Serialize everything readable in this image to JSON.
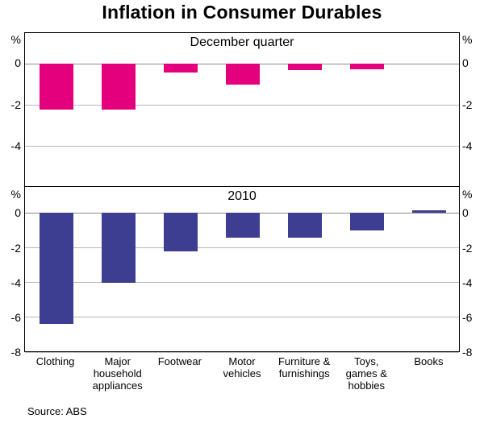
{
  "title": "Inflation in Consumer Durables",
  "source": "Source: ABS",
  "chart_data": {
    "type": "bar",
    "grid": true,
    "legend": "none",
    "axis_sides": "both",
    "categories": [
      "Clothing",
      "Major household appliances",
      "Footwear",
      "Motor vehicles",
      "Furniture & furnishings",
      "Toys, games & hobbies",
      "Books"
    ],
    "categories_display": [
      "Clothing",
      "Major\nhousehold\nappliances",
      "Footwear",
      "Motor\nvehicles",
      "Furniture &\nfurnishings",
      "Toys,\ngames &\nhobbies",
      "Books"
    ],
    "panels": [
      {
        "name": "December quarter",
        "unit": "%",
        "values": [
          -2.2,
          -2.2,
          -0.4,
          -1.0,
          -0.3,
          -0.25,
          0
        ],
        "ticks": [
          0,
          -2,
          -4
        ],
        "tick_labels": [
          "0",
          "-2",
          "-4"
        ],
        "ylim": [
          -6,
          1.5
        ],
        "bar_color": "#E4007C"
      },
      {
        "name": "2010",
        "unit": "%",
        "values": [
          -6.4,
          -4.0,
          -2.2,
          -1.4,
          -1.4,
          -1.0,
          0.15
        ],
        "ticks": [
          0,
          -2,
          -4,
          -6,
          -8
        ],
        "tick_labels": [
          "0",
          "-2",
          "-4",
          "-6",
          "-8"
        ],
        "ylim": [
          -8,
          1.5
        ],
        "bar_color": "#3D3E91"
      }
    ]
  }
}
